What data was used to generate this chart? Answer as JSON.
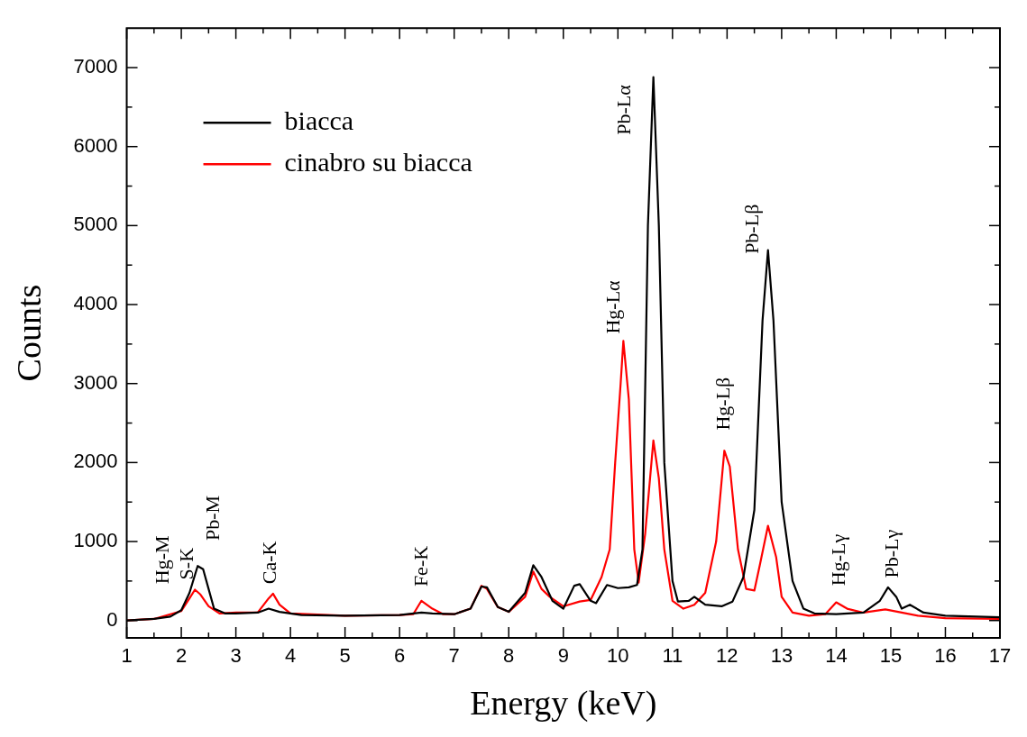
{
  "chart_data": {
    "type": "line",
    "xlabel": "Energy (keV)",
    "ylabel": "Counts",
    "xlim": [
      1,
      17
    ],
    "xticks": [
      1,
      2,
      3,
      4,
      5,
      6,
      7,
      8,
      9,
      10,
      11,
      12,
      13,
      14,
      15,
      16,
      17
    ],
    "ylim": [
      -220,
      7500
    ],
    "yticks": [
      0,
      1000,
      2000,
      3000,
      4000,
      5000,
      6000,
      7000
    ],
    "grid": false,
    "legend": "top left",
    "marker": "none",
    "line_style": "solid",
    "series": [
      {
        "name": "biacca",
        "color": "#000000",
        "x": [
          1,
          1.5,
          1.8,
          2,
          2.15,
          2.3,
          2.4,
          2.5,
          2.6,
          2.8,
          3,
          3.4,
          3.6,
          3.8,
          4.2,
          5,
          6,
          6.4,
          6.6,
          7,
          7.3,
          7.5,
          7.6,
          7.8,
          8,
          8.3,
          8.45,
          8.6,
          8.8,
          9,
          9.2,
          9.3,
          9.5,
          9.6,
          9.8,
          10,
          10.2,
          10.35,
          10.45,
          10.55,
          10.65,
          10.75,
          10.85,
          11,
          11.1,
          11.3,
          11.4,
          11.6,
          11.9,
          12.1,
          12.3,
          12.5,
          12.65,
          12.75,
          12.85,
          13,
          13.2,
          13.4,
          13.6,
          14,
          14.5,
          14.8,
          14.95,
          15.1,
          15.2,
          15.35,
          15.6,
          16,
          17
        ],
        "values": [
          0,
          20,
          50,
          130,
          350,
          690,
          650,
          400,
          150,
          90,
          90,
          100,
          150,
          110,
          70,
          60,
          70,
          100,
          90,
          80,
          150,
          430,
          420,
          170,
          110,
          350,
          700,
          550,
          250,
          150,
          440,
          460,
          250,
          220,
          450,
          410,
          420,
          450,
          900,
          5000,
          6880,
          5000,
          2000,
          500,
          240,
          250,
          300,
          200,
          180,
          240,
          550,
          1400,
          3800,
          4690,
          3800,
          1500,
          500,
          150,
          90,
          80,
          100,
          250,
          420,
          300,
          150,
          200,
          100,
          60,
          40
        ]
      },
      {
        "name": "cinabro su biacca",
        "color": "#ff0000",
        "x": [
          1,
          1.5,
          2,
          2.15,
          2.25,
          2.35,
          2.5,
          2.7,
          3,
          3.4,
          3.6,
          3.68,
          3.8,
          4,
          5,
          6,
          6.25,
          6.4,
          6.6,
          6.8,
          7,
          7.3,
          7.5,
          7.6,
          7.8,
          8,
          8.3,
          8.45,
          8.6,
          8.75,
          9,
          9.3,
          9.5,
          9.7,
          9.85,
          9.95,
          10.05,
          10.1,
          10.2,
          10.3,
          10.38,
          10.5,
          10.65,
          10.75,
          10.85,
          11,
          11.2,
          11.4,
          11.6,
          11.8,
          11.95,
          12.05,
          12.2,
          12.35,
          12.5,
          12.6,
          12.75,
          12.9,
          13,
          13.2,
          13.5,
          13.8,
          14,
          14.2,
          14.5,
          14.9,
          15.2,
          15.5,
          16,
          17
        ],
        "values": [
          0,
          20,
          120,
          280,
          390,
          330,
          180,
          90,
          100,
          100,
          280,
          340,
          200,
          90,
          60,
          70,
          80,
          250,
          150,
          80,
          80,
          150,
          440,
          400,
          170,
          110,
          300,
          620,
          400,
          300,
          180,
          240,
          260,
          550,
          900,
          2000,
          3000,
          3540,
          2800,
          900,
          480,
          1100,
          2280,
          1800,
          900,
          250,
          150,
          200,
          350,
          1000,
          2150,
          1950,
          900,
          400,
          380,
          700,
          1200,
          800,
          300,
          100,
          60,
          80,
          230,
          150,
          100,
          140,
          100,
          60,
          30,
          20
        ]
      }
    ],
    "annotations": [
      "Hg-M",
      "S-K",
      "Pb-M",
      "Ca-K",
      "Fe-K",
      "Hg-Lα",
      "Pb-Lα",
      "Hg-Lβ",
      "Pb-Lβ",
      "Hg-Lγ",
      "Pb-Lγ"
    ]
  }
}
